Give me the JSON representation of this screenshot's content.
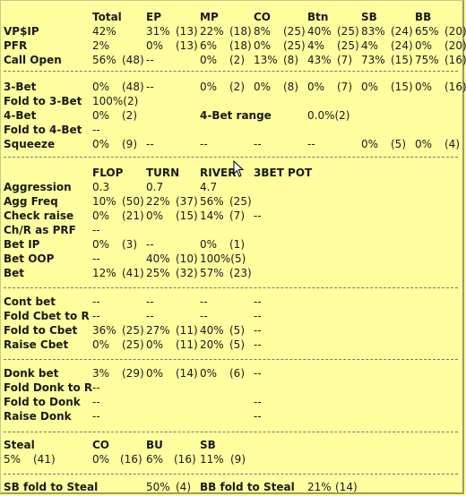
{
  "sections": {
    "preflop": {
      "headers": [
        "Total",
        "EP",
        "MP",
        "CO",
        "Btn",
        "SB",
        "BB"
      ],
      "rows": [
        {
          "label": "VP$IP",
          "cells": [
            "42%",
            "",
            "31%",
            "(13)",
            "22%",
            "(18)",
            "8%",
            "(25)",
            "40%",
            "(25)",
            "83%",
            "(24)",
            "65%",
            "(20)"
          ]
        },
        {
          "label": "PFR",
          "cells": [
            "2%",
            "",
            "0%",
            "(13)",
            "6%",
            "(18)",
            "0%",
            "(25)",
            "4%",
            "(25)",
            "4%",
            "(24)",
            "0%",
            "(20)"
          ]
        },
        {
          "label": "Call Open",
          "cells": [
            "56%",
            "(48)",
            "--",
            "",
            "0%",
            "(2)",
            "13%",
            "(8)",
            "43%",
            "(7)",
            "73%",
            "(15)",
            "75%",
            "(16)"
          ]
        }
      ]
    },
    "threebet": {
      "rows": [
        {
          "label": "3-Bet",
          "cells": [
            "0%",
            "(48)",
            "--",
            "",
            "0%",
            "(2)",
            "0%",
            "(8)",
            "0%",
            "(7)",
            "0%",
            "(15)",
            "0%",
            "(16)"
          ]
        },
        {
          "label": "Fold to 3-Bet",
          "cells": [
            "100%(2)"
          ]
        },
        {
          "label": "4-Bet",
          "cells": [
            "0%",
            "(2)"
          ],
          "extra_label": "4-Bet range",
          "extra_value": "0.0%(2)"
        },
        {
          "label": "Fold to 4-Bet",
          "cells": [
            "--"
          ]
        },
        {
          "label": "Squeeze",
          "cells": [
            "0%",
            "(9)",
            "--",
            "",
            "--",
            "",
            "--",
            "",
            "--",
            "",
            "0%",
            "(5)",
            "0%",
            "(4)"
          ]
        }
      ]
    },
    "postflop": {
      "headers": [
        "FLOP",
        "TURN",
        "RIVER",
        "3BET POT"
      ],
      "rows": [
        {
          "label": "Aggression",
          "cells": [
            "0.3",
            "",
            "0.7",
            "",
            "4.7",
            "",
            ""
          ]
        },
        {
          "label": "Agg Freq",
          "cells": [
            "10%",
            "(50)",
            "22%",
            "(37)",
            "56%",
            "(25)",
            ""
          ]
        },
        {
          "label": "Check raise",
          "cells": [
            "0%",
            "(21)",
            "0%",
            "(15)",
            "14%",
            "(7)",
            "--"
          ]
        },
        {
          "label": "Ch/R as PRF",
          "cells": [
            "--",
            "",
            "",
            "",
            "",
            "",
            ""
          ]
        },
        {
          "label": "Bet IP",
          "cells": [
            "0%",
            "(3)",
            "--",
            "",
            "0%",
            "(1)",
            ""
          ]
        },
        {
          "label": "Bet OOP",
          "cells": [
            "--",
            "",
            "40%",
            "(10)",
            "100%(5)",
            "",
            ""
          ]
        },
        {
          "label": "Bet",
          "cells": [
            "12%",
            "(41)",
            "25%",
            "(32)",
            "57%",
            "(23)",
            ""
          ]
        }
      ]
    },
    "cbet": {
      "rows": [
        {
          "label": "Cont bet",
          "cells": [
            "--",
            "",
            "--",
            "",
            "--",
            "",
            "--"
          ]
        },
        {
          "label": "Fold Cbet to R",
          "cells": [
            "--",
            "",
            "--",
            "",
            "--",
            "",
            "--"
          ]
        },
        {
          "label": "Fold to Cbet",
          "cells": [
            "36%",
            "(25)",
            "27%",
            "(11)",
            "40%",
            "(5)",
            "--"
          ]
        },
        {
          "label": "Raise Cbet",
          "cells": [
            "0%",
            "(25)",
            "0%",
            "(11)",
            "20%",
            "(5)",
            "--"
          ]
        }
      ]
    },
    "donk": {
      "rows": [
        {
          "label": "Donk bet",
          "cells": [
            "3%",
            "(29)",
            "0%",
            "(14)",
            "0%",
            "(6)",
            "--"
          ]
        },
        {
          "label": "Fold Donk to R",
          "cells": [
            "--",
            "",
            "",
            "",
            "",
            "",
            ""
          ]
        },
        {
          "label": "Fold to Donk",
          "cells": [
            "--",
            "",
            "",
            "",
            "",
            "",
            "--"
          ]
        },
        {
          "label": "Raise Donk",
          "cells": [
            "--",
            "",
            "",
            "",
            "",
            "",
            "--"
          ]
        }
      ]
    },
    "steal": {
      "label": "Steal",
      "headers": [
        "CO",
        "BU",
        "SB"
      ],
      "values": [
        "5%",
        "(41)",
        "0%",
        "(16)",
        "6%",
        "(16)",
        "11%",
        "(9)"
      ]
    },
    "bottom": {
      "sb_label": "SB fold to Steal",
      "sb_value": "50%",
      "sb_count": "(4)",
      "bb_label": "BB fold to Steal",
      "bb_value": "21%",
      "bb_count": "(14)"
    }
  }
}
